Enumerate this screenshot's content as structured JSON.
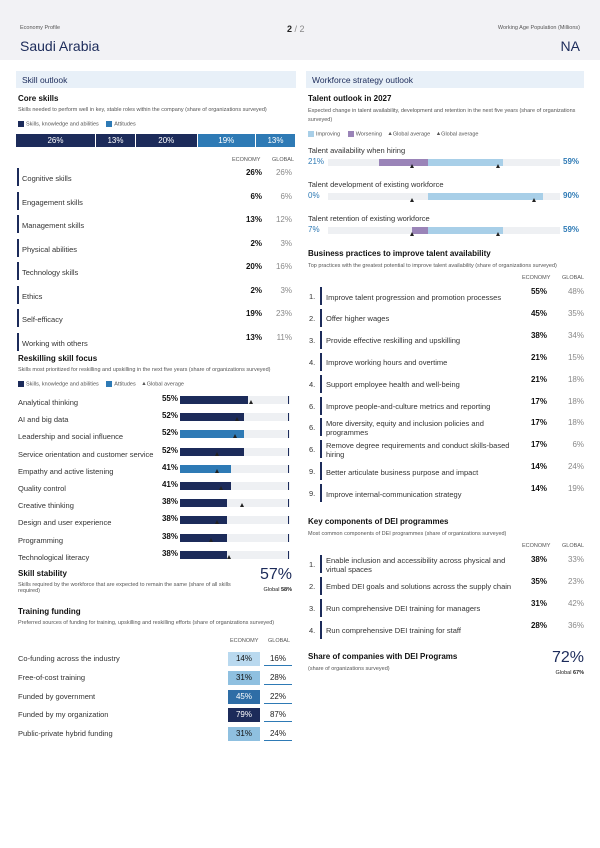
{
  "header": {
    "left_small": "Economy Profile",
    "page": "2",
    "page_total": "/ 2",
    "right_small": "Working Age Population (Millions)",
    "country": "Saudi Arabia",
    "population": "NA"
  },
  "skill_outlook": {
    "title": "Skill outlook",
    "core": {
      "title": "Core skills",
      "desc": "Skills needed to perform well in key, stable roles within the company (share of organizations surveyed)",
      "legend": [
        "Skills, knowledge and abilities",
        "Attitudes"
      ],
      "stack": [
        {
          "label": "26%",
          "value": 26,
          "color": "#1c2b5a"
        },
        {
          "label": "13%",
          "value": 13,
          "color": "#1c2b5a"
        },
        {
          "label": "20%",
          "value": 20,
          "color": "#1c2b5a"
        },
        {
          "label": "19%",
          "value": 19,
          "color": "#2e7ab5"
        },
        {
          "label": "13%",
          "value": 13,
          "color": "#2e7ab5"
        }
      ],
      "col_economy": "ECONOMY",
      "col_global": "GLOBAL",
      "rows": [
        {
          "name": "Cognitive skills",
          "eco": "26%",
          "glo": "26%"
        },
        {
          "name": "Engagement skills",
          "eco": "6%",
          "glo": "6%"
        },
        {
          "name": "Management skills",
          "eco": "13%",
          "glo": "12%"
        },
        {
          "name": "Physical abilities",
          "eco": "2%",
          "glo": "3%"
        },
        {
          "name": "Technology skills",
          "eco": "20%",
          "glo": "16%"
        },
        {
          "name": "Ethics",
          "eco": "2%",
          "glo": "3%"
        },
        {
          "name": "Self-efficacy",
          "eco": "19%",
          "glo": "23%"
        },
        {
          "name": "Working with others",
          "eco": "13%",
          "glo": "11%"
        }
      ]
    },
    "reskilling": {
      "title": "Reskilling skill focus",
      "desc": "Skills most prioritized for reskilling and upskilling in the next five years (share of organizations surveyed)",
      "legend": [
        "Skills, knowledge and abilities",
        "Attitudes",
        "Global average"
      ],
      "rows": [
        {
          "name": "Analytical thinking",
          "value": 55,
          "label": "55%",
          "global": 58,
          "type": "s"
        },
        {
          "name": "AI and big data",
          "value": 52,
          "label": "52%",
          "global": 46,
          "type": "s"
        },
        {
          "name": "Leadership and social influence",
          "value": 52,
          "label": "52%",
          "global": 45,
          "type": "a"
        },
        {
          "name": "Service orientation and customer service",
          "value": 52,
          "label": "52%",
          "global": 30,
          "type": "s"
        },
        {
          "name": "Empathy and active listening",
          "value": 41,
          "label": "41%",
          "global": 30,
          "type": "a"
        },
        {
          "name": "Quality control",
          "value": 41,
          "label": "41%",
          "global": 33,
          "type": "s"
        },
        {
          "name": "Creative thinking",
          "value": 38,
          "label": "38%",
          "global": 50,
          "type": "s"
        },
        {
          "name": "Design and user experience",
          "value": 38,
          "label": "38%",
          "global": 30,
          "type": "s"
        },
        {
          "name": "Programming",
          "value": 38,
          "label": "38%",
          "global": 25,
          "type": "s"
        },
        {
          "name": "Technological literacy",
          "value": 38,
          "label": "38%",
          "global": 40,
          "type": "s"
        }
      ]
    },
    "stability": {
      "title": "Skill stability",
      "desc": "Skills required by the workforce that are expected to remain the same (share of all skills required)",
      "value": "57%",
      "global_label": "Global",
      "global_value": "58%"
    },
    "funding": {
      "title": "Training funding",
      "desc": "Preferred sources of funding for training, upskilling and reskilling efforts (share of organizations surveyed)",
      "col_economy": "ECONOMY",
      "col_global": "GLOBAL",
      "rows": [
        {
          "name": "Co-funding across the industry",
          "eco": "14%",
          "glo": "16%",
          "eco_v": 14,
          "glo_v": 16
        },
        {
          "name": "Free-of-cost training",
          "eco": "31%",
          "glo": "28%",
          "eco_v": 31,
          "glo_v": 28
        },
        {
          "name": "Funded by government",
          "eco": "45%",
          "glo": "22%",
          "eco_v": 45,
          "glo_v": 22
        },
        {
          "name": "Funded by my organization",
          "eco": "79%",
          "glo": "87%",
          "eco_v": 79,
          "glo_v": 87
        },
        {
          "name": "Public-private hybrid funding",
          "eco": "31%",
          "glo": "24%",
          "eco_v": 31,
          "glo_v": 24
        }
      ]
    }
  },
  "workforce": {
    "title": "Workforce strategy outlook",
    "talent": {
      "title": "Talent outlook in 2027",
      "desc": "Expected change in talent availability, development and retention in the next five years (share of organizations surveyed)",
      "legend": [
        "Improving",
        "Worsening",
        "Global average",
        "Global average"
      ],
      "rows": [
        {
          "name": "Talent availability when hiring",
          "improving": "59%",
          "worsening": "21%",
          "imp_v": 59,
          "wor_v": 21
        },
        {
          "name": "Talent development of existing workforce",
          "improving": "90%",
          "worsening": "0%",
          "imp_v": 90,
          "wor_v": 0
        },
        {
          "name": "Talent retention of existing workforce",
          "improving": "59%",
          "worsening": "7%",
          "imp_v": 59,
          "wor_v": 7
        }
      ]
    },
    "practices": {
      "title": "Business practices to improve talent availability",
      "desc": "Top practices with the greatest potential to improve talent availability (share of organizations surveyed)",
      "col_economy": "ECONOMY",
      "col_global": "GLOBAL",
      "rows": [
        {
          "n": "1.",
          "name": "Improve talent progression and promotion processes",
          "eco": "55%",
          "glo": "48%"
        },
        {
          "n": "2.",
          "name": "Offer higher wages",
          "eco": "45%",
          "glo": "35%"
        },
        {
          "n": "3.",
          "name": "Provide effective reskilling and upskilling",
          "eco": "38%",
          "glo": "34%"
        },
        {
          "n": "4.",
          "name": "Improve working hours and overtime",
          "eco": "21%",
          "glo": "15%"
        },
        {
          "n": "4.",
          "name": "Support employee health and well-being",
          "eco": "21%",
          "glo": "18%"
        },
        {
          "n": "6.",
          "name": "Improve people-and-culture metrics and reporting",
          "eco": "17%",
          "glo": "18%"
        },
        {
          "n": "6.",
          "name": "More diversity, equity and inclusion policies and programmes",
          "eco": "17%",
          "glo": "18%"
        },
        {
          "n": "6.",
          "name": "Remove degree requirements and conduct skills-based hiring",
          "eco": "17%",
          "glo": "6%"
        },
        {
          "n": "9.",
          "name": "Better articulate business purpose and impact",
          "eco": "14%",
          "glo": "24%"
        },
        {
          "n": "9.",
          "name": "Improve internal-communication strategy",
          "eco": "14%",
          "glo": "19%"
        }
      ]
    },
    "dei": {
      "title": "Key components of DEI programmes",
      "desc": "Most common components of DEI programmes (share of organizations surveyed)",
      "col_economy": "ECONOMY",
      "col_global": "GLOBAL",
      "rows": [
        {
          "n": "1.",
          "name": "Enable inclusion and accessibility across physical and virtual spaces",
          "eco": "38%",
          "glo": "33%"
        },
        {
          "n": "2.",
          "name": "Embed DEI goals and solutions across the supply chain",
          "eco": "35%",
          "glo": "23%"
        },
        {
          "n": "3.",
          "name": "Run comprehensive DEI training for managers",
          "eco": "31%",
          "glo": "42%"
        },
        {
          "n": "4.",
          "name": "Run comprehensive DEI training for staff",
          "eco": "28%",
          "glo": "36%"
        }
      ]
    },
    "share": {
      "title": "Share of companies with DEI Programs",
      "desc": "(share of organizations surveyed)",
      "value": "72%",
      "global_label": "Global",
      "global_value": "67%"
    }
  },
  "colors": {
    "navy": "#1c2b5a",
    "blue": "#2e7ab5",
    "light": "#a8cfe8",
    "purple": "#9a84b8"
  }
}
